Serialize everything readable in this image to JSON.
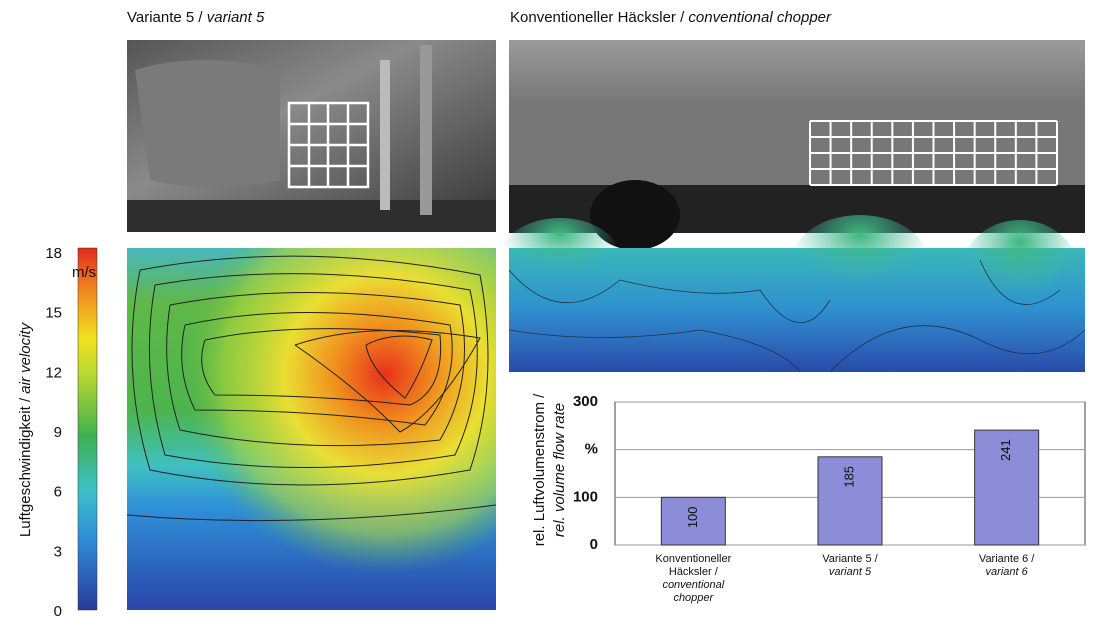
{
  "panels": {
    "left_title": "Variante 5 / ",
    "left_title_italic": "variant 5",
    "right_title": "Konventioneller Häcksler / ",
    "right_title_italic": "conventional chopper"
  },
  "chart_data": [
    {
      "type": "colorbar",
      "title": "Luftgeschwindigkeit / ",
      "title_italic": "air velocity",
      "unit": "m/s",
      "ylim": [
        0,
        18
      ],
      "yticks": [
        0,
        3,
        6,
        9,
        12,
        15,
        18
      ]
    },
    {
      "type": "bar",
      "ylabel": "rel. Luftvolumenstrom /",
      "ylabel_italic": "rel. volume flow rate",
      "categories": [
        "Konventioneller Häcksler /",
        "Variante 5 /",
        "Variante 6 /"
      ],
      "categories_italic": [
        "conventional chopper",
        "variant 5",
        "variant 6"
      ],
      "values": [
        100,
        185,
        241
      ],
      "color": "#8c8cd8",
      "ylim": [
        0,
        300
      ],
      "yticks": [
        0,
        100,
        {
          "value": 200,
          "label": "%"
        },
        300
      ],
      "grid": true
    }
  ]
}
